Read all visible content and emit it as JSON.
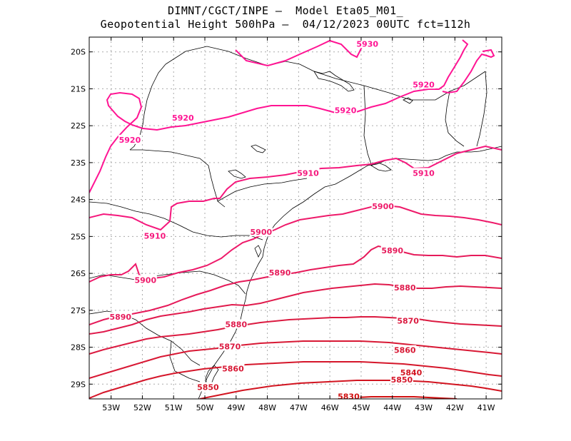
{
  "title": {
    "line1": "DIMNT/CGCT/INPE –  Model Eta05_M01_",
    "line2": "Geopotential Height 500hPa –  04/12/2023 00UTC fct=112h"
  },
  "axes": {
    "lat_ticks": [
      "20S",
      "21S",
      "22S",
      "23S",
      "24S",
      "25S",
      "26S",
      "27S",
      "28S",
      "29S"
    ],
    "lon_ticks": [
      "53W",
      "52W",
      "51W",
      "50W",
      "49W",
      "48W",
      "47W",
      "46W",
      "45W",
      "44W",
      "43W",
      "42W",
      "41W"
    ],
    "lat_range": [
      -29.4,
      -19.6
    ],
    "lon_range": [
      -53.7,
      -40.5
    ],
    "grid": "dotted"
  },
  "colors": {
    "c5930": "#ff1493",
    "c5920": "#ff1493",
    "c5910": "#f5177c",
    "c5900": "#ee1a6a",
    "c5890": "#e61a5a",
    "c5880": "#e01a4c",
    "c5870": "#db1a40",
    "c5860": "#d81834",
    "c5850": "#d5162a",
    "c5840": "#d21420",
    "c5830": "#d01010",
    "coast": "#000000"
  },
  "contour_labels": [
    {
      "text": "5930",
      "lon": -44.8,
      "lat": -19.8,
      "color": "#ff1493"
    },
    {
      "text": "5920",
      "lon": -43.0,
      "lat": -20.9,
      "color": "#ff1493"
    },
    {
      "text": "5920",
      "lon": -50.7,
      "lat": -21.8,
      "color": "#ff1493"
    },
    {
      "text": "5920",
      "lon": -45.5,
      "lat": -21.6,
      "color": "#ff1493"
    },
    {
      "text": "5920",
      "lon": -52.4,
      "lat": -22.4,
      "color": "#ff1493"
    },
    {
      "text": "5910",
      "lon": -46.7,
      "lat": -23.3,
      "color": "#f5177c"
    },
    {
      "text": "5910",
      "lon": -43.0,
      "lat": -23.3,
      "color": "#f5177c"
    },
    {
      "text": "5910",
      "lon": -51.6,
      "lat": -25.0,
      "color": "#f5177c"
    },
    {
      "text": "5900",
      "lon": -44.3,
      "lat": -24.2,
      "color": "#ee1a6a"
    },
    {
      "text": "5900",
      "lon": -48.2,
      "lat": -24.9,
      "color": "#ee1a6a"
    },
    {
      "text": "5900",
      "lon": -51.9,
      "lat": -26.2,
      "color": "#ee1a6a"
    },
    {
      "text": "5890",
      "lon": -44.0,
      "lat": -25.4,
      "color": "#e61a5a"
    },
    {
      "text": "5890",
      "lon": -47.6,
      "lat": -26.0,
      "color": "#e61a5a"
    },
    {
      "text": "5890",
      "lon": -52.7,
      "lat": -27.2,
      "color": "#e61a5a"
    },
    {
      "text": "5880",
      "lon": -43.6,
      "lat": -26.4,
      "color": "#e01a4c"
    },
    {
      "text": "5880",
      "lon": -49.0,
      "lat": -27.4,
      "color": "#e01a4c"
    },
    {
      "text": "5870",
      "lon": -43.5,
      "lat": -27.3,
      "color": "#db1a40"
    },
    {
      "text": "5870",
      "lon": -49.2,
      "lat": -28.0,
      "color": "#db1a40"
    },
    {
      "text": "5860",
      "lon": -43.6,
      "lat": -28.1,
      "color": "#d81834"
    },
    {
      "text": "5860",
      "lon": -49.1,
      "lat": -28.6,
      "color": "#d81834"
    },
    {
      "text": "5850",
      "lon": -43.7,
      "lat": -28.9,
      "color": "#d5162a"
    },
    {
      "text": "5850",
      "lon": -49.9,
      "lat": -29.1,
      "color": "#d5162a"
    },
    {
      "text": "5840",
      "lon": -43.4,
      "lat": -28.7,
      "color": "#d21420"
    },
    {
      "text": "5830",
      "lon": -45.4,
      "lat": -29.35,
      "color": "#d01010"
    }
  ]
}
